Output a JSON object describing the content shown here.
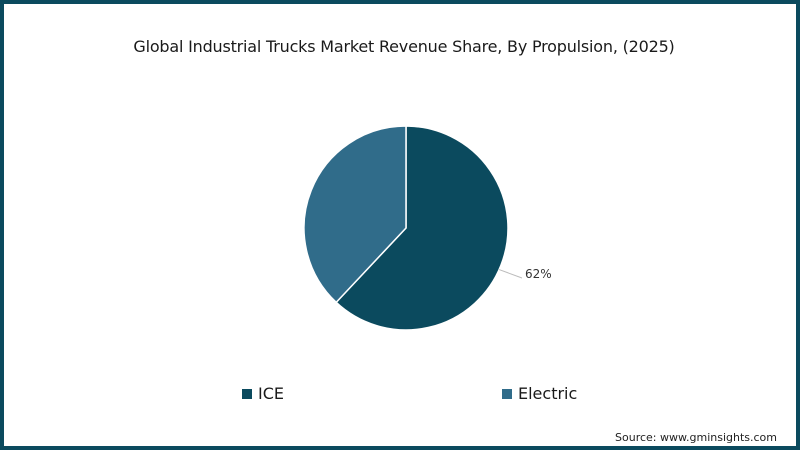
{
  "chart_data": {
    "type": "pie",
    "title": "Global Industrial Trucks Market Revenue Share, By Propulsion, (2025)",
    "categories": [
      "ICE",
      "Electric"
    ],
    "values": [
      62,
      38
    ],
    "colors": [
      "#0b4a5e",
      "#306c8a"
    ],
    "data_labels": [
      "62%",
      ""
    ],
    "legend_position": "bottom",
    "source": "Source: www.gminsights.com"
  },
  "header": {
    "title": "Global Industrial Trucks Market Revenue Share, By Propulsion, (2025)"
  },
  "legend": {
    "items": [
      {
        "label": "ICE",
        "color": "#0b4a5e"
      },
      {
        "label": "Electric",
        "color": "#306c8a"
      }
    ]
  },
  "labels": {
    "ice_pct": "62%"
  },
  "footer": {
    "source": "Source: www.gminsights.com"
  },
  "theme": {
    "frame_color": "#0b4a5e"
  }
}
